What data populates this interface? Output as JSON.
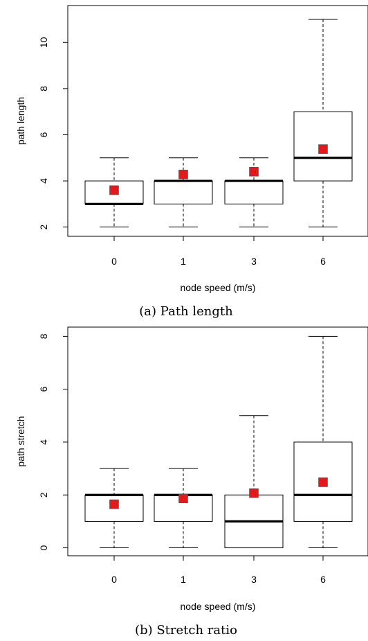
{
  "chart_data": [
    {
      "type": "boxplot",
      "caption": "(a) Path length",
      "xlabel": "node speed (m/s)",
      "ylabel": "path length",
      "ylim": [
        1.6,
        11.6
      ],
      "yticks": [
        "2",
        "4",
        "6",
        "8",
        "10"
      ],
      "categories": [
        "0",
        "1",
        "3",
        "6"
      ],
      "boxes": [
        {
          "min": 2,
          "q1": 3,
          "median": 3,
          "q3": 4,
          "max": 5,
          "mean": 3.6
        },
        {
          "min": 2,
          "q1": 3,
          "median": 4,
          "q3": 4,
          "max": 5,
          "mean": 4.28
        },
        {
          "min": 2,
          "q1": 3,
          "median": 4,
          "q3": 4,
          "max": 5,
          "mean": 4.4
        },
        {
          "min": 2,
          "q1": 4,
          "median": 5,
          "q3": 7,
          "max": 11,
          "mean": 5.38
        }
      ],
      "colors": {
        "mean_marker": "#e31a1c"
      }
    },
    {
      "type": "boxplot",
      "caption": "(b) Stretch ratio",
      "xlabel": "node speed (m/s)",
      "ylabel": "path stretch",
      "ylim": [
        -0.3,
        8.35
      ],
      "yticks": [
        "0",
        "2",
        "4",
        "6",
        "8"
      ],
      "categories": [
        "0",
        "1",
        "3",
        "6"
      ],
      "boxes": [
        {
          "min": 0,
          "q1": 1,
          "median": 2,
          "q3": 2,
          "max": 3,
          "mean": 1.65
        },
        {
          "min": 0,
          "q1": 1,
          "median": 2,
          "q3": 2,
          "max": 3,
          "mean": 1.87
        },
        {
          "min": 0,
          "q1": 0,
          "median": 1,
          "q3": 2,
          "max": 5,
          "mean": 2.07
        },
        {
          "min": 0,
          "q1": 1,
          "median": 2,
          "q3": 4,
          "max": 8,
          "mean": 2.48
        }
      ],
      "colors": {
        "mean_marker": "#e31a1c"
      }
    }
  ]
}
